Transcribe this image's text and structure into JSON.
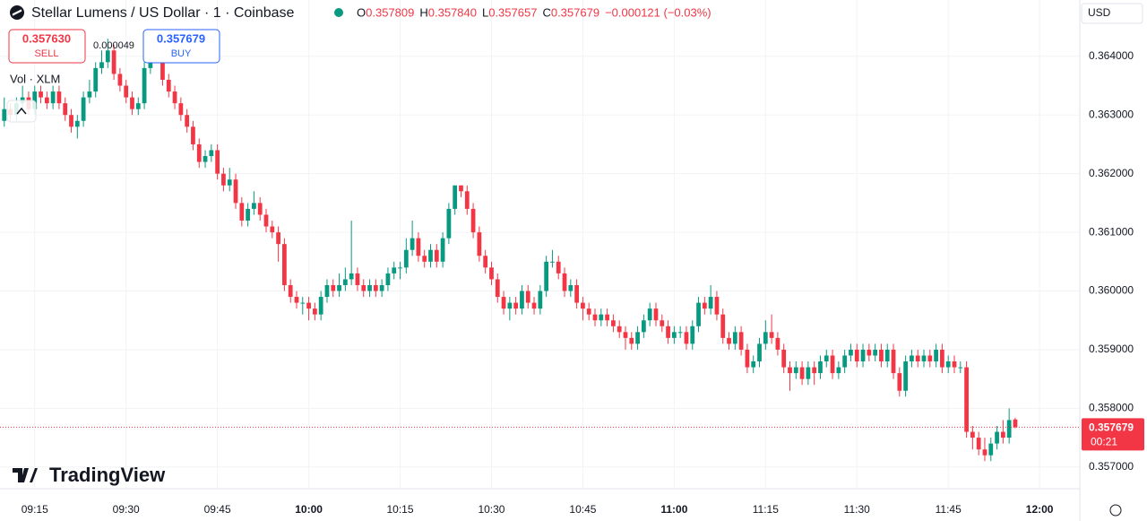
{
  "header": {
    "title": "Stellar Lumens / US Dollar · 1 · Coinbase",
    "ohlc": [
      {
        "label": "O",
        "value": "0.357809"
      },
      {
        "label": "H",
        "value": "0.357840"
      },
      {
        "label": "L",
        "value": "0.357657"
      },
      {
        "label": "C",
        "value": "0.357679"
      }
    ],
    "change": "−0.000121 (−0.03%)",
    "sell": {
      "price": "0.357630",
      "label": "SELL"
    },
    "spread": "0.000049",
    "buy": {
      "price": "0.357679",
      "label": "BUY"
    },
    "volume_label": "Vol · XLM",
    "currency": "USD",
    "logo": "TradingView"
  },
  "chart_data": {
    "type": "candlestick",
    "up_color": "#089981",
    "down_color": "#f23645",
    "grid": true,
    "ylim": [
      0.35663,
      0.36496
    ],
    "yticks": [
      {
        "value": 0.357,
        "label": "0.357000"
      },
      {
        "value": 0.358,
        "label": "0.358000"
      },
      {
        "value": 0.359,
        "label": "0.359000"
      },
      {
        "value": 0.36,
        "label": "0.360000"
      },
      {
        "value": 0.361,
        "label": "0.361000"
      },
      {
        "value": 0.362,
        "label": "0.362000"
      },
      {
        "value": 0.363,
        "label": "0.363000"
      },
      {
        "value": 0.364,
        "label": "0.364000"
      }
    ],
    "xlim": [
      -0.7,
      176.6
    ],
    "xticks": [
      {
        "value": 5,
        "label": "09:15"
      },
      {
        "value": 20,
        "label": "09:30"
      },
      {
        "value": 35,
        "label": "09:45"
      },
      {
        "value": 50,
        "label": "10:00"
      },
      {
        "value": 65,
        "label": "10:15"
      },
      {
        "value": 80,
        "label": "10:30"
      },
      {
        "value": 95,
        "label": "10:45"
      },
      {
        "value": 110,
        "label": "11:00"
      },
      {
        "value": 125,
        "label": "11:15"
      },
      {
        "value": 140,
        "label": "11:30"
      },
      {
        "value": 155,
        "label": "11:45"
      },
      {
        "value": 170,
        "label": "12:00"
      }
    ],
    "last_price": {
      "value": 0.357679,
      "label": "0.357679",
      "countdown": "00:21"
    },
    "candles": [
      [
        0.3629,
        0.3633,
        0.3628,
        0.3631
      ],
      [
        0.3631,
        0.3632,
        0.3629,
        0.363
      ],
      [
        0.363,
        0.3633,
        0.3629,
        0.3632
      ],
      [
        0.3632,
        0.3635,
        0.3631,
        0.3633
      ],
      [
        0.3633,
        0.3634,
        0.363,
        0.3631
      ],
      [
        0.3631,
        0.3635,
        0.363,
        0.3634
      ],
      [
        0.3634,
        0.3635,
        0.3632,
        0.3633
      ],
      [
        0.3633,
        0.3634,
        0.3631,
        0.3632
      ],
      [
        0.3632,
        0.3635,
        0.3631,
        0.3634
      ],
      [
        0.3634,
        0.3635,
        0.3631,
        0.3632
      ],
      [
        0.3632,
        0.3633,
        0.3629,
        0.363
      ],
      [
        0.363,
        0.3631,
        0.3627,
        0.3628
      ],
      [
        0.3628,
        0.363,
        0.3626,
        0.3629
      ],
      [
        0.3629,
        0.3634,
        0.3628,
        0.3633
      ],
      [
        0.3633,
        0.3636,
        0.3632,
        0.3634
      ],
      [
        0.3634,
        0.3639,
        0.3633,
        0.3638
      ],
      [
        0.3638,
        0.3641,
        0.3637,
        0.3639
      ],
      [
        0.3639,
        0.3643,
        0.3638,
        0.3641
      ],
      [
        0.3641,
        0.3642,
        0.3636,
        0.3637
      ],
      [
        0.3637,
        0.3638,
        0.3634,
        0.3635
      ],
      [
        0.3635,
        0.3636,
        0.3632,
        0.3633
      ],
      [
        0.3633,
        0.3634,
        0.363,
        0.3631
      ],
      [
        0.3631,
        0.3633,
        0.363,
        0.3632
      ],
      [
        0.3632,
        0.3639,
        0.3631,
        0.3638
      ],
      [
        0.3638,
        0.3644,
        0.3637,
        0.3642
      ],
      [
        0.3642,
        0.3643,
        0.364,
        0.3641
      ],
      [
        0.3641,
        0.3642,
        0.3635,
        0.3636
      ],
      [
        0.3636,
        0.3637,
        0.3633,
        0.3634
      ],
      [
        0.3634,
        0.3635,
        0.3631,
        0.3632
      ],
      [
        0.3632,
        0.3633,
        0.3629,
        0.363
      ],
      [
        0.363,
        0.3631,
        0.3627,
        0.3628
      ],
      [
        0.3628,
        0.3629,
        0.3624,
        0.3625
      ],
      [
        0.3625,
        0.3626,
        0.3621,
        0.3622
      ],
      [
        0.3622,
        0.3624,
        0.3621,
        0.3623
      ],
      [
        0.3623,
        0.3625,
        0.3622,
        0.3624
      ],
      [
        0.3624,
        0.3625,
        0.3619,
        0.362
      ],
      [
        0.362,
        0.3621,
        0.3617,
        0.3618
      ],
      [
        0.3618,
        0.3621,
        0.3617,
        0.3619
      ],
      [
        0.3619,
        0.362,
        0.3614,
        0.3615
      ],
      [
        0.3615,
        0.3616,
        0.3611,
        0.3612
      ],
      [
        0.3612,
        0.3615,
        0.3611,
        0.3614
      ],
      [
        0.3614,
        0.3617,
        0.3613,
        0.3615
      ],
      [
        0.3615,
        0.3616,
        0.3612,
        0.3613
      ],
      [
        0.3613,
        0.3614,
        0.361,
        0.3611
      ],
      [
        0.3611,
        0.3612,
        0.3609,
        0.361
      ],
      [
        0.361,
        0.3611,
        0.3605,
        0.3608
      ],
      [
        0.3608,
        0.3609,
        0.36,
        0.3601
      ],
      [
        0.3601,
        0.3602,
        0.3598,
        0.3599
      ],
      [
        0.3599,
        0.36,
        0.3597,
        0.3598
      ],
      [
        0.3598,
        0.3599,
        0.3596,
        0.3598
      ],
      [
        0.3598,
        0.3599,
        0.3595,
        0.3597
      ],
      [
        0.3597,
        0.3598,
        0.3595,
        0.3596
      ],
      [
        0.3596,
        0.36,
        0.3595,
        0.3599
      ],
      [
        0.3599,
        0.3602,
        0.3598,
        0.3601
      ],
      [
        0.3601,
        0.3602,
        0.3599,
        0.36
      ],
      [
        0.36,
        0.3603,
        0.3599,
        0.3601
      ],
      [
        0.3601,
        0.3604,
        0.36,
        0.3602
      ],
      [
        0.3602,
        0.3612,
        0.3601,
        0.3603
      ],
      [
        0.3603,
        0.3604,
        0.36,
        0.3601
      ],
      [
        0.3601,
        0.3602,
        0.3599,
        0.36
      ],
      [
        0.36,
        0.3602,
        0.3599,
        0.3601
      ],
      [
        0.3601,
        0.3602,
        0.3599,
        0.36
      ],
      [
        0.36,
        0.3602,
        0.3599,
        0.3601
      ],
      [
        0.3601,
        0.3604,
        0.36,
        0.3603
      ],
      [
        0.3603,
        0.3605,
        0.3602,
        0.3604
      ],
      [
        0.3604,
        0.3605,
        0.3602,
        0.3604
      ],
      [
        0.3604,
        0.3609,
        0.3603,
        0.3607
      ],
      [
        0.3607,
        0.3612,
        0.3606,
        0.3609
      ],
      [
        0.3609,
        0.361,
        0.3605,
        0.3606
      ],
      [
        0.3606,
        0.3607,
        0.3604,
        0.3605
      ],
      [
        0.3605,
        0.3608,
        0.3604,
        0.3607
      ],
      [
        0.3607,
        0.3608,
        0.3604,
        0.3605
      ],
      [
        0.3605,
        0.361,
        0.3604,
        0.3609
      ],
      [
        0.3609,
        0.3615,
        0.3608,
        0.3614
      ],
      [
        0.3614,
        0.3618,
        0.3613,
        0.3618
      ],
      [
        0.3618,
        0.3618,
        0.3616,
        0.3617
      ],
      [
        0.3617,
        0.3618,
        0.3613,
        0.3614
      ],
      [
        0.3614,
        0.3615,
        0.3609,
        0.361
      ],
      [
        0.361,
        0.3611,
        0.3605,
        0.3606
      ],
      [
        0.3606,
        0.3607,
        0.3603,
        0.3604
      ],
      [
        0.3604,
        0.3605,
        0.3601,
        0.3602
      ],
      [
        0.3602,
        0.3603,
        0.3598,
        0.3599
      ],
      [
        0.3599,
        0.36,
        0.3596,
        0.3597
      ],
      [
        0.3597,
        0.3599,
        0.3595,
        0.3598
      ],
      [
        0.3598,
        0.3599,
        0.3596,
        0.3597
      ],
      [
        0.3597,
        0.3601,
        0.3596,
        0.36
      ],
      [
        0.36,
        0.3601,
        0.3597,
        0.3598
      ],
      [
        0.3598,
        0.3599,
        0.3596,
        0.3597
      ],
      [
        0.3597,
        0.3601,
        0.3596,
        0.36
      ],
      [
        0.36,
        0.3606,
        0.3599,
        0.3605
      ],
      [
        0.3605,
        0.3607,
        0.3604,
        0.3605
      ],
      [
        0.3605,
        0.3606,
        0.3602,
        0.3603
      ],
      [
        0.3603,
        0.3604,
        0.3599,
        0.36
      ],
      [
        0.36,
        0.3602,
        0.3599,
        0.3601
      ],
      [
        0.3601,
        0.3602,
        0.3597,
        0.3598
      ],
      [
        0.3598,
        0.3599,
        0.3595,
        0.3597
      ],
      [
        0.3597,
        0.3598,
        0.3595,
        0.3596
      ],
      [
        0.3596,
        0.3597,
        0.3594,
        0.3595
      ],
      [
        0.3595,
        0.3597,
        0.3594,
        0.3596
      ],
      [
        0.3596,
        0.3597,
        0.3594,
        0.3595
      ],
      [
        0.3595,
        0.3596,
        0.3593,
        0.3594
      ],
      [
        0.3594,
        0.3595,
        0.3592,
        0.3593
      ],
      [
        0.3593,
        0.3594,
        0.359,
        0.3592
      ],
      [
        0.3592,
        0.3593,
        0.359,
        0.3591
      ],
      [
        0.3591,
        0.3594,
        0.359,
        0.3593
      ],
      [
        0.3593,
        0.3596,
        0.3592,
        0.3595
      ],
      [
        0.3595,
        0.3598,
        0.3594,
        0.3597
      ],
      [
        0.3597,
        0.3598,
        0.3594,
        0.3595
      ],
      [
        0.3595,
        0.3596,
        0.3593,
        0.3594
      ],
      [
        0.3594,
        0.3595,
        0.3591,
        0.3592
      ],
      [
        0.3592,
        0.3594,
        0.3591,
        0.3593
      ],
      [
        0.3593,
        0.3594,
        0.3592,
        0.3593
      ],
      [
        0.3593,
        0.3594,
        0.359,
        0.3591
      ],
      [
        0.3591,
        0.3595,
        0.359,
        0.3594
      ],
      [
        0.3594,
        0.3599,
        0.3593,
        0.3598
      ],
      [
        0.3598,
        0.3599,
        0.3596,
        0.3597
      ],
      [
        0.3597,
        0.3601,
        0.3596,
        0.3599
      ],
      [
        0.3599,
        0.36,
        0.3595,
        0.3596
      ],
      [
        0.3596,
        0.3597,
        0.3591,
        0.3592
      ],
      [
        0.3592,
        0.3593,
        0.359,
        0.3591
      ],
      [
        0.3591,
        0.3594,
        0.359,
        0.3593
      ],
      [
        0.3593,
        0.3594,
        0.3589,
        0.359
      ],
      [
        0.359,
        0.3591,
        0.3586,
        0.3587
      ],
      [
        0.3587,
        0.3589,
        0.3586,
        0.3588
      ],
      [
        0.3588,
        0.3592,
        0.3587,
        0.3591
      ],
      [
        0.3591,
        0.3595,
        0.359,
        0.3593
      ],
      [
        0.3593,
        0.3596,
        0.3591,
        0.3592
      ],
      [
        0.3592,
        0.3593,
        0.3589,
        0.359
      ],
      [
        0.359,
        0.3591,
        0.3586,
        0.3587
      ],
      [
        0.3587,
        0.3588,
        0.3583,
        0.3586
      ],
      [
        0.3586,
        0.3588,
        0.3585,
        0.3587
      ],
      [
        0.3587,
        0.3588,
        0.3584,
        0.3585
      ],
      [
        0.3585,
        0.3588,
        0.3584,
        0.3587
      ],
      [
        0.3587,
        0.3588,
        0.3584,
        0.3586
      ],
      [
        0.3586,
        0.3589,
        0.3585,
        0.3588
      ],
      [
        0.3588,
        0.359,
        0.3587,
        0.3589
      ],
      [
        0.3589,
        0.359,
        0.3585,
        0.3586
      ],
      [
        0.3586,
        0.3588,
        0.3585,
        0.3587
      ],
      [
        0.3587,
        0.359,
        0.3586,
        0.3589
      ],
      [
        0.3589,
        0.3591,
        0.3588,
        0.359
      ],
      [
        0.359,
        0.3591,
        0.3587,
        0.3588
      ],
      [
        0.3588,
        0.3591,
        0.3587,
        0.359
      ],
      [
        0.359,
        0.3591,
        0.3588,
        0.3589
      ],
      [
        0.3589,
        0.3591,
        0.3588,
        0.359
      ],
      [
        0.359,
        0.3591,
        0.3587,
        0.3588
      ],
      [
        0.3588,
        0.3591,
        0.3587,
        0.359
      ],
      [
        0.359,
        0.3591,
        0.3585,
        0.3586
      ],
      [
        0.3586,
        0.3587,
        0.3582,
        0.3583
      ],
      [
        0.3583,
        0.3589,
        0.3582,
        0.3588
      ],
      [
        0.3588,
        0.359,
        0.3587,
        0.3589
      ],
      [
        0.3589,
        0.359,
        0.3587,
        0.3588
      ],
      [
        0.3588,
        0.359,
        0.3587,
        0.3589
      ],
      [
        0.3589,
        0.359,
        0.3587,
        0.3588
      ],
      [
        0.3588,
        0.3591,
        0.3587,
        0.359
      ],
      [
        0.359,
        0.3591,
        0.3586,
        0.3587
      ],
      [
        0.3587,
        0.3589,
        0.3586,
        0.3588
      ],
      [
        0.3588,
        0.3589,
        0.3586,
        0.3587
      ],
      [
        0.3587,
        0.3588,
        0.3586,
        0.3587
      ],
      [
        0.3587,
        0.3588,
        0.3575,
        0.3576
      ],
      [
        0.3576,
        0.3577,
        0.3573,
        0.3575
      ],
      [
        0.3575,
        0.3576,
        0.3572,
        0.3573
      ],
      [
        0.3573,
        0.3575,
        0.3571,
        0.3572
      ],
      [
        0.3572,
        0.3575,
        0.3571,
        0.3574
      ],
      [
        0.3574,
        0.3577,
        0.3573,
        0.3576
      ],
      [
        0.3576,
        0.3578,
        0.3574,
        0.3575
      ],
      [
        0.3575,
        0.358,
        0.3574,
        0.3578
      ],
      [
        0.35781,
        0.35784,
        0.35766,
        0.35768
      ]
    ]
  }
}
